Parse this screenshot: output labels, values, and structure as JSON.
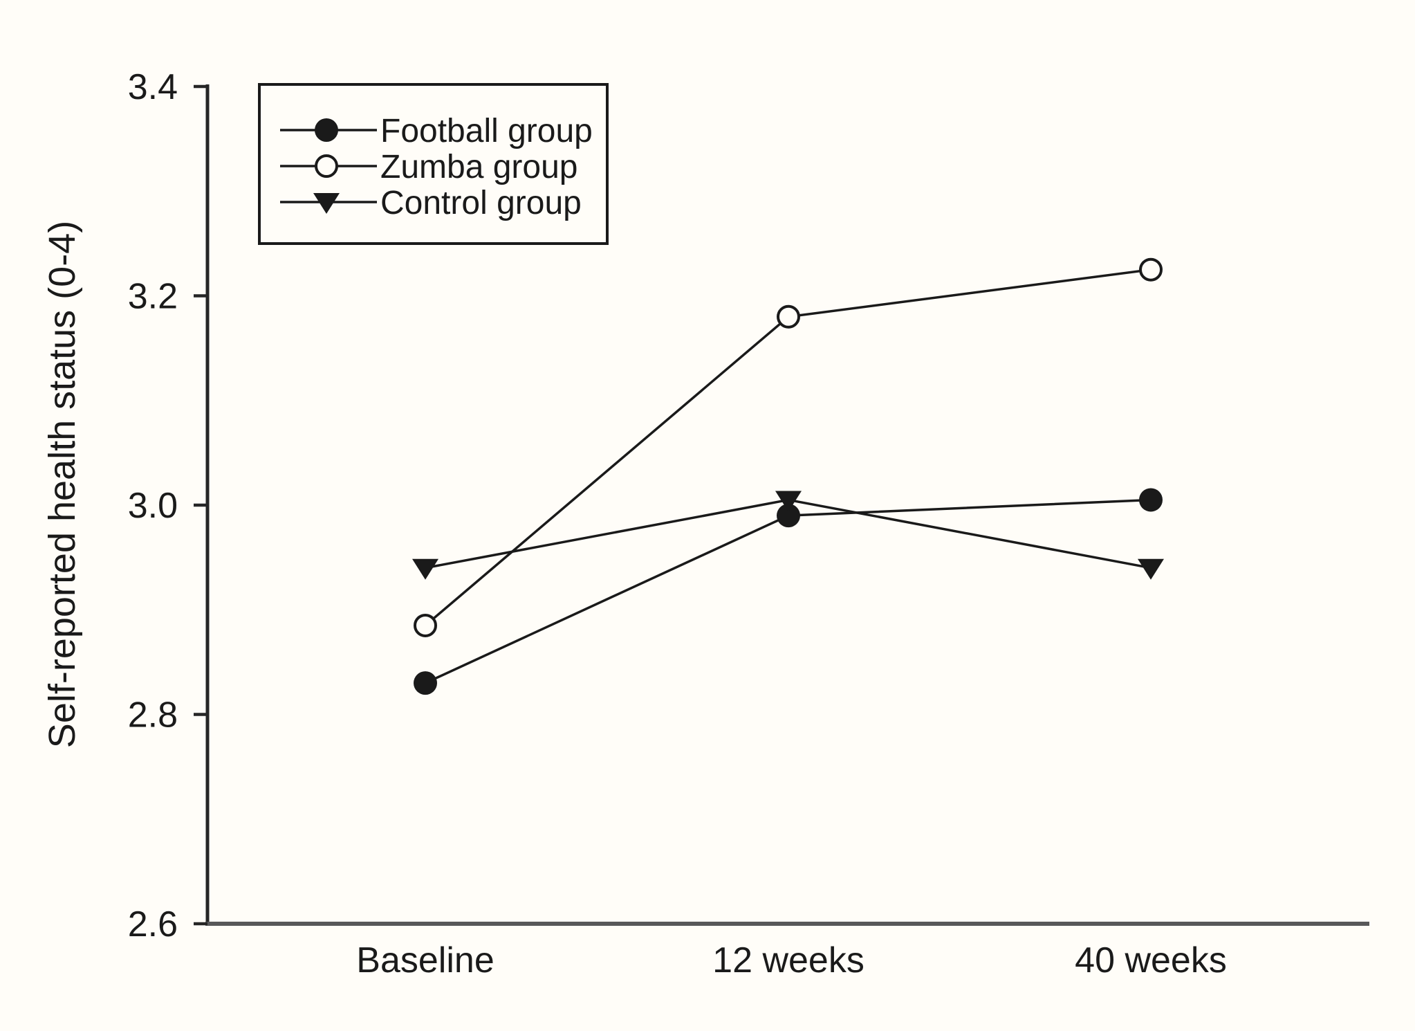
{
  "chart_data": {
    "type": "line",
    "title": "",
    "xlabel": "",
    "ylabel": "Self-reported health status (0-4)",
    "ylim": [
      2.6,
      3.4
    ],
    "grid": false,
    "yticks": [
      {
        "value": 3.4,
        "label": "3.4"
      },
      {
        "value": 3.2,
        "label": "3.2"
      },
      {
        "value": 3.0,
        "label": "3.0"
      },
      {
        "value": 2.8,
        "label": "2.8"
      },
      {
        "value": 2.6,
        "label": "2.6"
      }
    ],
    "categories": [
      "Baseline",
      "12 weeks",
      "40 weeks"
    ],
    "series": [
      {
        "name": "Football group",
        "marker": "circle-filled",
        "values": [
          2.83,
          2.99,
          3.005
        ]
      },
      {
        "name": "Zumba group",
        "marker": "circle-open",
        "values": [
          2.885,
          3.18,
          3.225
        ]
      },
      {
        "name": "Control group",
        "marker": "triangle-down-filled",
        "values": [
          2.94,
          3.005,
          2.94
        ]
      }
    ],
    "legend": {
      "position": "top-left",
      "entries": [
        "Football group",
        "Zumba group",
        "Control group"
      ]
    },
    "colors": {
      "background": "#fffdf8",
      "line": "#1a1a1a",
      "marker_fill": "#1a1a1a",
      "marker_open_fill": "#fffdf8",
      "y_axis": "#262626",
      "x_axis": "#58585a",
      "text": "#1a1a1a",
      "legend_border": "#1a1a1a"
    }
  }
}
